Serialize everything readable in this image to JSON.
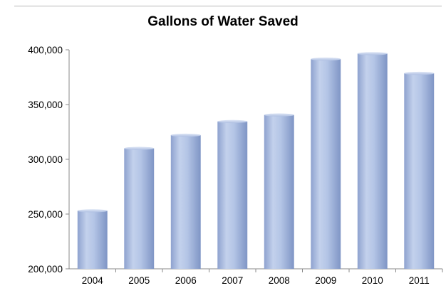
{
  "chart_data": {
    "type": "bar",
    "title": "Gallons of Water Saved",
    "xlabel": "",
    "ylabel": "",
    "categories": [
      "2004",
      "2005",
      "2006",
      "2007",
      "2008",
      "2009",
      "2010",
      "2011"
    ],
    "values": [
      253000,
      310000,
      322000,
      334500,
      340500,
      391500,
      396500,
      378500
    ],
    "ylim": [
      200000,
      400000
    ],
    "yticks": [
      200000,
      250000,
      300000,
      350000,
      400000
    ],
    "ytick_labels": [
      "200,000",
      "250,000",
      "300,000",
      "350,000",
      "400,000"
    ],
    "grid": false,
    "legend": "none",
    "colors": {
      "bar_light": "#c6d4ee",
      "bar_mid": "#9eb3df",
      "bar_dark": "#7f95c5",
      "axis": "#888888"
    }
  }
}
